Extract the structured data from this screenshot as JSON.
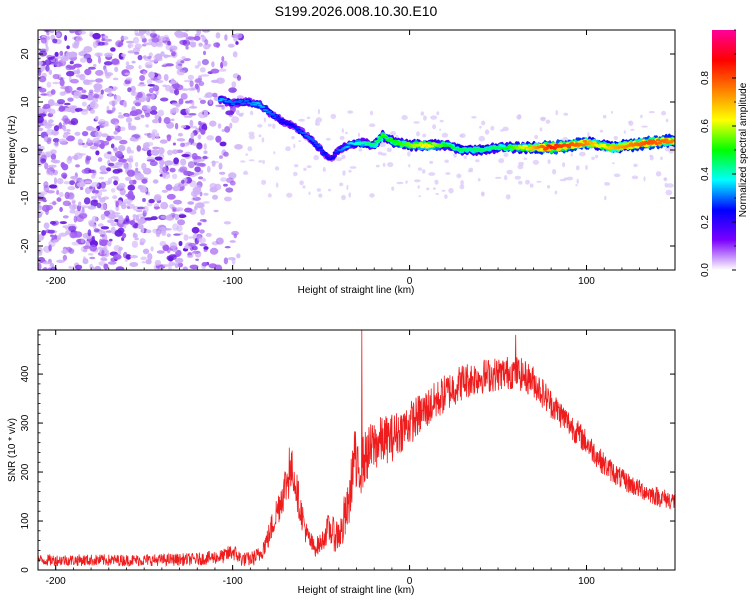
{
  "figure_title": "S199.2026.008.10.30.E10",
  "colors": {
    "snr_line": "#ee1c1c",
    "scatter_noise": "#9d4bea",
    "colorbar_stops": [
      "#ffffff",
      "#7b00ff",
      "#0000ff",
      "#00ffff",
      "#00ff00",
      "#ffff00",
      "#ff7f00",
      "#ff0000",
      "#ff0099"
    ]
  },
  "chart_data": [
    {
      "type": "heatmap",
      "name": "spectrogram",
      "title": "",
      "xlabel": "Height of straight line (km)",
      "ylabel": "Frequency (Hz)",
      "xlim": [
        -210,
        150
      ],
      "ylim": [
        -25,
        25
      ],
      "xticks": [
        -200,
        -100,
        0,
        100
      ],
      "yticks": [
        -20,
        -10,
        0,
        10,
        20
      ],
      "xtick_labels": [
        "-200",
        "-100",
        "0",
        "100"
      ],
      "ytick_labels": [
        "-20",
        "-10",
        "0",
        "10",
        "20"
      ],
      "colorbar": {
        "label": "Normalized spectral amplitude",
        "range": [
          0,
          1
        ],
        "ticks": [
          0.0,
          0.2,
          0.4,
          0.6,
          0.8
        ],
        "tick_labels": [
          "0.0",
          "0.2",
          "0.4",
          "0.6",
          "0.8"
        ]
      },
      "noise_region": {
        "x_range": [
          -210,
          -95
        ],
        "y_range": [
          -25,
          25
        ],
        "amplitude": 0.1
      },
      "ridge": [
        {
          "x": -107,
          "freq": 10.5,
          "amp": 0.35
        },
        {
          "x": -100,
          "freq": 9.8,
          "amp": 0.3
        },
        {
          "x": -92,
          "freq": 10.0,
          "amp": 0.3
        },
        {
          "x": -85,
          "freq": 9.5,
          "amp": 0.35
        },
        {
          "x": -78,
          "freq": 7.5,
          "amp": 0.3
        },
        {
          "x": -72,
          "freq": 6.0,
          "amp": 0.25
        },
        {
          "x": -66,
          "freq": 5.0,
          "amp": 0.25
        },
        {
          "x": -60,
          "freq": 3.5,
          "amp": 0.3
        },
        {
          "x": -55,
          "freq": 2.0,
          "amp": 0.3
        },
        {
          "x": -50,
          "freq": 0.0,
          "amp": 0.28
        },
        {
          "x": -45,
          "freq": -2.0,
          "amp": 0.22
        },
        {
          "x": -40,
          "freq": 0.0,
          "amp": 0.3
        },
        {
          "x": -35,
          "freq": 1.0,
          "amp": 0.35
        },
        {
          "x": -28,
          "freq": 1.5,
          "amp": 0.4
        },
        {
          "x": -20,
          "freq": 1.0,
          "amp": 0.45
        },
        {
          "x": -15,
          "freq": 3.0,
          "amp": 0.5
        },
        {
          "x": -8,
          "freq": 1.5,
          "amp": 0.5
        },
        {
          "x": 0,
          "freq": 1.0,
          "amp": 0.55
        },
        {
          "x": 10,
          "freq": 1.0,
          "amp": 0.65
        },
        {
          "x": 20,
          "freq": 1.0,
          "amp": 0.5
        },
        {
          "x": 30,
          "freq": 0.0,
          "amp": 0.45
        },
        {
          "x": 40,
          "freq": 0.0,
          "amp": 0.45
        },
        {
          "x": 50,
          "freq": 0.5,
          "amp": 0.45
        },
        {
          "x": 60,
          "freq": 0.5,
          "amp": 0.55
        },
        {
          "x": 70,
          "freq": 0.5,
          "amp": 0.7
        },
        {
          "x": 80,
          "freq": 0.5,
          "amp": 0.85
        },
        {
          "x": 90,
          "freq": 1.0,
          "amp": 0.8
        },
        {
          "x": 100,
          "freq": 1.5,
          "amp": 0.75
        },
        {
          "x": 108,
          "freq": 1.0,
          "amp": 0.6
        },
        {
          "x": 115,
          "freq": 0.5,
          "amp": 0.7
        },
        {
          "x": 125,
          "freq": 1.0,
          "amp": 0.75
        },
        {
          "x": 135,
          "freq": 1.5,
          "amp": 0.8
        },
        {
          "x": 150,
          "freq": 2.0,
          "amp": 0.75
        }
      ]
    },
    {
      "type": "line",
      "name": "snr",
      "title": "",
      "xlabel": "Height of straight line (km)",
      "ylabel": "SNR (10 * v/v)",
      "xlim": [
        -210,
        150
      ],
      "ylim": [
        0,
        490
      ],
      "xticks": [
        -200,
        -100,
        0,
        100
      ],
      "yticks": [
        0,
        100,
        200,
        300,
        400
      ],
      "xtick_labels": [
        "-200",
        "-100",
        "0",
        "100"
      ],
      "ytick_labels": [
        "0",
        "100",
        "200",
        "300",
        "400"
      ],
      "series": [
        {
          "name": "SNR",
          "x": [
            -210,
            -180,
            -150,
            -120,
            -105,
            -100,
            -95,
            -90,
            -85,
            -80,
            -75,
            -70,
            -66,
            -62,
            -58,
            -54,
            -50,
            -46,
            -42,
            -38,
            -34,
            -31,
            -30,
            -28,
            -25,
            -20,
            -15,
            -10,
            -5,
            0,
            10,
            20,
            30,
            40,
            50,
            60,
            70,
            80,
            90,
            100,
            110,
            120,
            130,
            140,
            150
          ],
          "y": [
            20,
            20,
            20,
            22,
            28,
            38,
            22,
            22,
            30,
            65,
            120,
            175,
            205,
            130,
            70,
            45,
            55,
            85,
            70,
            80,
            140,
            250,
            190,
            210,
            230,
            255,
            265,
            270,
            285,
            300,
            330,
            360,
            385,
            395,
            400,
            405,
            385,
            340,
            300,
            260,
            215,
            185,
            165,
            150,
            140
          ],
          "noise_amplitude": [
            12,
            12,
            12,
            13,
            15,
            18,
            15,
            15,
            18,
            25,
            35,
            45,
            45,
            35,
            25,
            20,
            20,
            30,
            35,
            40,
            50,
            60,
            60,
            60,
            55,
            55,
            50,
            50,
            45,
            45,
            42,
            40,
            38,
            36,
            35,
            35,
            33,
            30,
            28,
            26,
            24,
            22,
            20,
            20,
            20
          ],
          "spikes": [
            {
              "x": -68,
              "y": 250
            },
            {
              "x": -37,
              "y": 150
            },
            {
              "x": -27,
              "y": 490
            },
            {
              "x": 60,
              "y": 480
            }
          ]
        }
      ]
    }
  ]
}
